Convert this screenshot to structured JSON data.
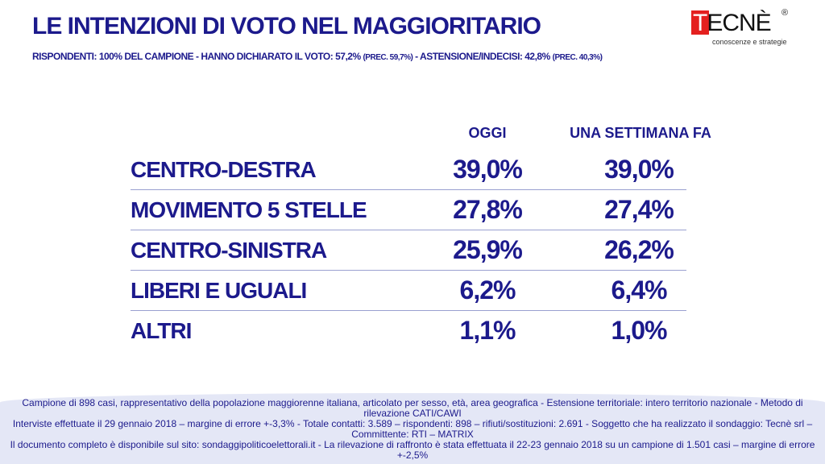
{
  "header": {
    "title": "LE INTENZIONI DI VOTO NEL MAGGIORITARIO",
    "subtitle_main": "RISPONDENTI: 100% DEL CAMPIONE - HANNO DICHIARATO IL VOTO: 57,2%",
    "subtitle_prec1": "(PREC. 59,7%)",
    "subtitle_mid": "- ASTENSIONE/INDECISI: 42,8%",
    "subtitle_prec2": "(PREC. 40,3%)"
  },
  "logo": {
    "text": "TECNÈ",
    "tagline": "conoscenze e strategie",
    "reg": "®"
  },
  "table": {
    "columns": [
      "OGGI",
      "UNA SETTIMANA FA"
    ],
    "rows": [
      {
        "label": "CENTRO-DESTRA",
        "today": "39,0%",
        "week_ago": "39,0%"
      },
      {
        "label": "MOVIMENTO 5 STELLE",
        "today": "27,8%",
        "week_ago": "27,4%"
      },
      {
        "label": "CENTRO-SINISTRA",
        "today": "25,9%",
        "week_ago": "26,2%"
      },
      {
        "label": "LIBERI E UGUALI",
        "today": "6,2%",
        "week_ago": "6,4%"
      },
      {
        "label": "ALTRI",
        "today": "1,1%",
        "week_ago": "1,0%"
      }
    ]
  },
  "footer": {
    "lines": [
      "Campione di  898 casi, rappresentativo della popolazione maggiorenne italiana, articolato per sesso, età, area geografica - Estensione territoriale: intero territorio nazionale - Metodo di rilevazione CATI/CAWI",
      "Interviste effettuate il 29 gennaio 2018 – margine di errore +-3,3%  - Totale contatti: 3.589 – rispondenti: 898 – rifiuti/sostituzioni: 2.691 - Soggetto che ha realizzato il sondaggio: Tecnè srl – Committente: RTI – MATRIX",
      "Il documento completo è disponibile sul sito: sondaggipoliticoelettorali.it - La rilevazione di raffronto è stata effettuata il 22-23 gennaio 2018 su un campione di 1.501 casi – margine di errore +-2,5%"
    ]
  }
}
